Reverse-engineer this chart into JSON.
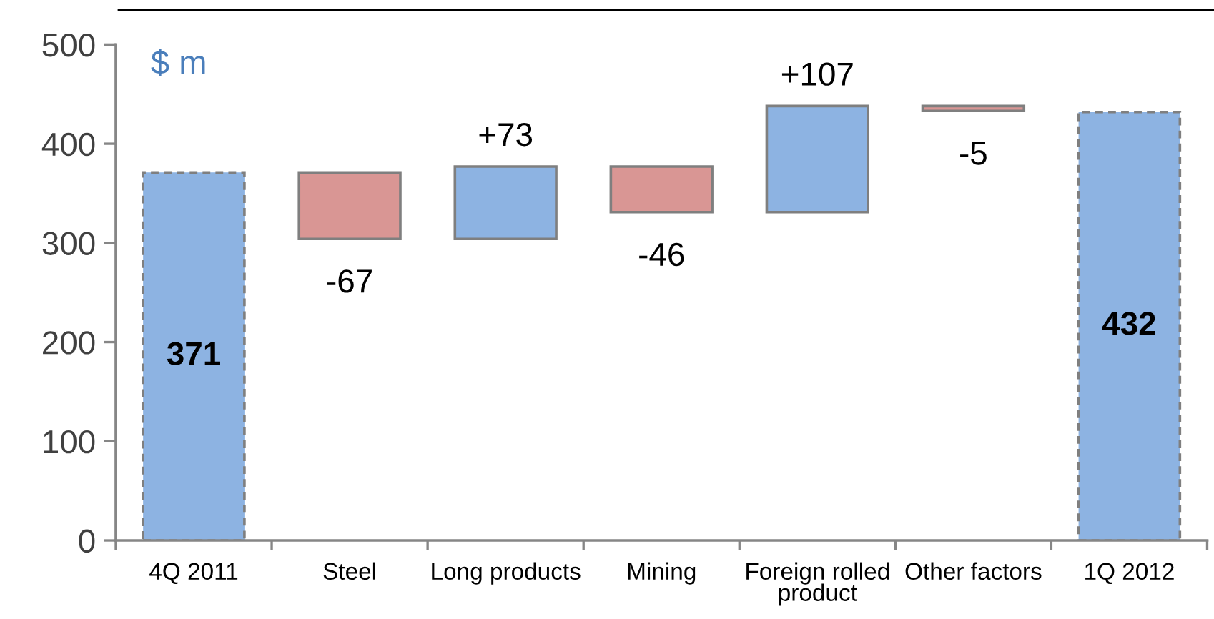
{
  "chart_data": {
    "type": "bar",
    "ylabel": "$ m",
    "categories": [
      "4Q 2011",
      "Steel",
      "Long products",
      "Mining",
      "Foreign rolled product",
      "Other factors",
      "1Q 2012"
    ],
    "values": [
      371,
      -67,
      73,
      -46,
      107,
      -5,
      432
    ],
    "base": [
      0,
      371,
      304,
      377,
      331,
      438,
      0
    ],
    "colors": [
      "#8db3e2",
      "#d99694",
      "#8db3e2",
      "#d99694",
      "#8db3e2",
      "#d99694",
      "#8db3e2"
    ],
    "value_labels": [
      "371",
      "-67",
      "+73",
      "-46",
      "+107",
      "-5",
      "432"
    ],
    "ylim": [
      0,
      500
    ],
    "yticks": [
      0,
      100,
      200,
      300,
      400,
      500
    ]
  }
}
